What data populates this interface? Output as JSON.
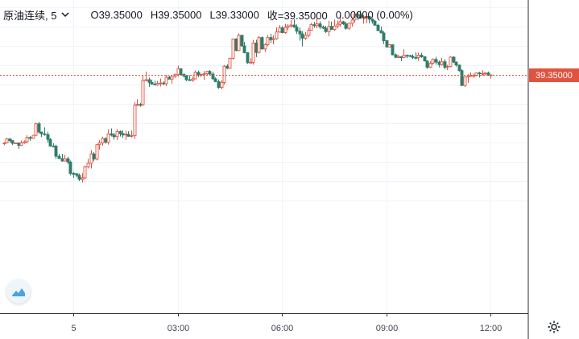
{
  "legend": {
    "symbol": "原油连续, 5",
    "open": "O39.35000",
    "high": "H39.35000",
    "low": "L39.33000",
    "close": "收=39.35000",
    "change": "0.00000 (0.00%)"
  },
  "price_badge": "39.35000",
  "colors": {
    "up": "#e0533f",
    "down": "#2e7d6a",
    "grid": "#f0f3fa",
    "axis_text": "#434651",
    "last_price_line": "#e0533f"
  },
  "icons": [
    "chevron-down-icon",
    "tradingview-logo-icon",
    "gear-icon"
  ],
  "chart_data": {
    "type": "candlestick",
    "symbol": "原油连续",
    "interval": "5",
    "y_range_visible": [
      38.6,
      39.7
    ],
    "last_price": 39.35,
    "x_tick_labels": [
      "5",
      "03:00",
      "06:00",
      "09:00",
      "12:00"
    ],
    "x_tick_index": [
      24,
      60,
      96,
      132,
      168
    ],
    "grid": true,
    "candles": [
      [
        38.998,
        39.002,
        38.986,
        38.998
      ],
      [
        38.998,
        39.024,
        38.996,
        39.019
      ],
      [
        39.019,
        39.021,
        39.0,
        39.01
      ],
      [
        39.01,
        39.012,
        38.987,
        38.996
      ],
      [
        38.996,
        38.998,
        38.994,
        38.998
      ],
      [
        38.998,
        38.998,
        38.967,
        38.985
      ],
      [
        38.985,
        39.011,
        38.985,
        38.998
      ],
      [
        38.998,
        39.011,
        38.993,
        39.004
      ],
      [
        39.004,
        39.038,
        38.998,
        39.026
      ],
      [
        39.026,
        39.034,
        39.009,
        39.022
      ],
      [
        39.022,
        39.039,
        39.02,
        39.037
      ],
      [
        39.037,
        39.102,
        39.034,
        39.097
      ],
      [
        39.097,
        39.107,
        39.047,
        39.054
      ],
      [
        39.054,
        39.057,
        39.028,
        39.045
      ],
      [
        39.045,
        39.078,
        39.035,
        39.041
      ],
      [
        39.041,
        39.055,
        39.0,
        39.016
      ],
      [
        39.016,
        39.024,
        38.978,
        38.982
      ],
      [
        38.982,
        38.996,
        38.979,
        38.981
      ],
      [
        38.981,
        38.989,
        38.915,
        38.929
      ],
      [
        38.929,
        38.942,
        38.916,
        38.917
      ],
      [
        38.917,
        38.941,
        38.901,
        38.904
      ],
      [
        38.904,
        38.936,
        38.901,
        38.916
      ],
      [
        38.916,
        38.926,
        38.888,
        38.899
      ],
      [
        38.899,
        38.906,
        38.83,
        38.84
      ],
      [
        38.84,
        38.848,
        38.817,
        38.838
      ],
      [
        38.838,
        38.841,
        38.82,
        38.83
      ],
      [
        38.83,
        38.839,
        38.8,
        38.81
      ],
      [
        38.81,
        38.841,
        38.794,
        38.817
      ],
      [
        38.817,
        38.88,
        38.813,
        38.875
      ],
      [
        38.875,
        38.916,
        38.866,
        38.893
      ],
      [
        38.893,
        38.961,
        38.865,
        38.941
      ],
      [
        38.941,
        38.95,
        38.903,
        38.915
      ],
      [
        38.915,
        38.992,
        38.907,
        38.989
      ],
      [
        38.989,
        39.012,
        38.964,
        38.998
      ],
      [
        38.998,
        39.03,
        38.984,
        39.021
      ],
      [
        39.021,
        39.026,
        38.993,
        39.002
      ],
      [
        39.002,
        39.068,
        38.989,
        39.045
      ],
      [
        39.045,
        39.073,
        39.031,
        39.039
      ],
      [
        39.039,
        39.05,
        39.015,
        39.03
      ],
      [
        39.03,
        39.07,
        39.013,
        39.057
      ],
      [
        39.057,
        39.063,
        39.031,
        39.046
      ],
      [
        39.046,
        39.063,
        39.024,
        39.039
      ],
      [
        39.039,
        39.061,
        39.014,
        39.043
      ],
      [
        39.043,
        39.059,
        39.03,
        39.032
      ],
      [
        39.032,
        39.062,
        39.026,
        39.036
      ],
      [
        39.036,
        39.208,
        39.019,
        39.194
      ],
      [
        39.194,
        39.224,
        39.189,
        39.197
      ],
      [
        39.197,
        39.204,
        39.185,
        39.196
      ],
      [
        39.196,
        39.346,
        39.189,
        39.321
      ],
      [
        39.321,
        39.367,
        39.316,
        39.325
      ],
      [
        39.325,
        39.336,
        39.288,
        39.311
      ],
      [
        39.311,
        39.325,
        39.3,
        39.302
      ],
      [
        39.302,
        39.32,
        39.297,
        39.298
      ],
      [
        39.298,
        39.319,
        39.294,
        39.306
      ],
      [
        39.306,
        39.331,
        39.29,
        39.308
      ],
      [
        39.308,
        39.317,
        39.296,
        39.304
      ],
      [
        39.304,
        39.349,
        39.292,
        39.338
      ],
      [
        39.338,
        39.346,
        39.327,
        39.328
      ],
      [
        39.328,
        39.348,
        39.305,
        39.341
      ],
      [
        39.341,
        39.356,
        39.335,
        39.353
      ],
      [
        39.353,
        39.398,
        39.342,
        39.382
      ],
      [
        39.382,
        39.383,
        39.351,
        39.352
      ],
      [
        39.352,
        39.358,
        39.337,
        39.344
      ],
      [
        39.344,
        39.349,
        39.317,
        39.325
      ],
      [
        39.325,
        39.348,
        39.319,
        39.322
      ],
      [
        39.322,
        39.342,
        39.314,
        39.329
      ],
      [
        39.329,
        39.373,
        39.328,
        39.363
      ],
      [
        39.363,
        39.372,
        39.338,
        39.351
      ],
      [
        39.351,
        39.357,
        39.339,
        39.352
      ],
      [
        39.352,
        39.37,
        39.324,
        39.356
      ],
      [
        39.356,
        39.37,
        39.347,
        39.368
      ],
      [
        39.368,
        39.375,
        39.348,
        39.354
      ],
      [
        39.354,
        39.365,
        39.325,
        39.33
      ],
      [
        39.33,
        39.337,
        39.312,
        39.315
      ],
      [
        39.315,
        39.326,
        39.277,
        39.285
      ],
      [
        39.285,
        39.323,
        39.275,
        39.311
      ],
      [
        39.311,
        39.401,
        39.3,
        39.395
      ],
      [
        39.395,
        39.405,
        39.38,
        39.384
      ],
      [
        39.384,
        39.437,
        39.383,
        39.436
      ],
      [
        39.436,
        39.538,
        39.429,
        39.536
      ],
      [
        39.536,
        39.539,
        39.472,
        39.476
      ],
      [
        39.476,
        39.564,
        39.473,
        39.555
      ],
      [
        39.555,
        39.556,
        39.496,
        39.5
      ],
      [
        39.5,
        39.521,
        39.462,
        39.465
      ],
      [
        39.465,
        39.467,
        39.407,
        39.413
      ],
      [
        39.413,
        39.436,
        39.411,
        39.415
      ],
      [
        39.415,
        39.531,
        39.403,
        39.515
      ],
      [
        39.515,
        39.532,
        39.442,
        39.466
      ],
      [
        39.466,
        39.55,
        39.46,
        39.543
      ],
      [
        39.543,
        39.549,
        39.481,
        39.484
      ],
      [
        39.484,
        39.514,
        39.469,
        39.507
      ],
      [
        39.507,
        39.556,
        39.499,
        39.543
      ],
      [
        39.543,
        39.562,
        39.515,
        39.532
      ],
      [
        39.532,
        39.555,
        39.508,
        39.537
      ],
      [
        39.537,
        39.596,
        39.532,
        39.572
      ],
      [
        39.572,
        39.608,
        39.568,
        39.593
      ],
      [
        39.593,
        39.603,
        39.565,
        39.569
      ],
      [
        39.569,
        39.614,
        39.563,
        39.596
      ],
      [
        39.596,
        39.613,
        39.582,
        39.603
      ],
      [
        39.603,
        39.633,
        39.594,
        39.608
      ],
      [
        39.608,
        39.637,
        39.594,
        39.597
      ],
      [
        39.597,
        39.611,
        39.562,
        39.576
      ],
      [
        39.576,
        39.595,
        39.527,
        39.562
      ],
      [
        39.562,
        39.576,
        39.497,
        39.54
      ],
      [
        39.54,
        39.572,
        39.532,
        39.555
      ],
      [
        39.555,
        39.594,
        39.544,
        39.581
      ],
      [
        39.581,
        39.619,
        39.579,
        39.61
      ],
      [
        39.61,
        39.624,
        39.594,
        39.605
      ],
      [
        39.605,
        39.643,
        39.591,
        39.614
      ],
      [
        39.614,
        39.627,
        39.588,
        39.598
      ],
      [
        39.598,
        39.606,
        39.587,
        39.592
      ],
      [
        39.592,
        39.604,
        39.567,
        39.574
      ],
      [
        39.574,
        39.63,
        39.55,
        39.601
      ],
      [
        39.601,
        39.626,
        39.584,
        39.585
      ],
      [
        39.585,
        39.636,
        39.578,
        39.603
      ],
      [
        39.603,
        39.63,
        39.59,
        39.612
      ],
      [
        39.612,
        39.658,
        39.6,
        39.625
      ],
      [
        39.625,
        39.63,
        39.609,
        39.614
      ],
      [
        39.614,
        39.624,
        39.584,
        39.591
      ],
      [
        39.591,
        39.62,
        39.583,
        39.617
      ],
      [
        39.617,
        39.642,
        39.6,
        39.634
      ],
      [
        39.634,
        39.678,
        39.621,
        39.663
      ],
      [
        39.663,
        39.676,
        39.634,
        39.661
      ],
      [
        39.661,
        39.683,
        39.64,
        39.644
      ],
      [
        39.644,
        39.661,
        39.615,
        39.651
      ],
      [
        39.651,
        39.661,
        39.617,
        39.652
      ],
      [
        39.652,
        39.652,
        39.616,
        39.638
      ],
      [
        39.638,
        39.643,
        39.615,
        39.628
      ],
      [
        39.628,
        39.634,
        39.605,
        39.607
      ],
      [
        39.607,
        39.614,
        39.576,
        39.579
      ],
      [
        39.579,
        39.6,
        39.566,
        39.567
      ],
      [
        39.567,
        39.576,
        39.51,
        39.527
      ],
      [
        39.527,
        39.53,
        39.492,
        39.494
      ],
      [
        39.494,
        39.508,
        39.493,
        39.506
      ],
      [
        39.506,
        39.506,
        39.451,
        39.454
      ],
      [
        39.454,
        39.461,
        39.437,
        39.441
      ],
      [
        39.441,
        39.454,
        39.438,
        39.444
      ],
      [
        39.444,
        39.448,
        39.421,
        39.439
      ],
      [
        39.439,
        39.483,
        39.437,
        39.451
      ],
      [
        39.451,
        39.456,
        39.437,
        39.45
      ],
      [
        39.45,
        39.454,
        39.442,
        39.446
      ],
      [
        39.446,
        39.457,
        39.432,
        39.44
      ],
      [
        39.44,
        39.467,
        39.43,
        39.439
      ],
      [
        39.439,
        39.465,
        39.423,
        39.452
      ],
      [
        39.452,
        39.464,
        39.438,
        39.444
      ],
      [
        39.444,
        39.444,
        39.42,
        39.422
      ],
      [
        39.422,
        39.425,
        39.381,
        39.389
      ],
      [
        39.389,
        39.42,
        39.385,
        39.41
      ],
      [
        39.41,
        39.436,
        39.403,
        39.43
      ],
      [
        39.43,
        39.444,
        39.403,
        39.416
      ],
      [
        39.416,
        39.424,
        39.389,
        39.403
      ],
      [
        39.403,
        39.438,
        39.398,
        39.418
      ],
      [
        39.418,
        39.431,
        39.379,
        39.389
      ],
      [
        39.389,
        39.402,
        39.375,
        39.393
      ],
      [
        39.393,
        39.446,
        39.389,
        39.442
      ],
      [
        39.442,
        39.446,
        39.411,
        39.416
      ],
      [
        39.416,
        39.42,
        39.392,
        39.401
      ],
      [
        39.401,
        39.402,
        39.367,
        39.372
      ],
      [
        39.372,
        39.379,
        39.292,
        39.295
      ],
      [
        39.295,
        39.343,
        39.287,
        39.339
      ],
      [
        39.339,
        39.354,
        39.309,
        39.345
      ],
      [
        39.345,
        39.363,
        39.341,
        39.347
      ],
      [
        39.347,
        39.356,
        39.335,
        39.347
      ],
      [
        39.347,
        39.362,
        39.342,
        39.36
      ],
      [
        39.36,
        39.366,
        39.336,
        39.357
      ],
      [
        39.357,
        39.374,
        39.346,
        39.357
      ],
      [
        39.357,
        39.362,
        39.348,
        39.36
      ],
      [
        39.36,
        39.367,
        39.345,
        39.35
      ],
      [
        39.35,
        39.35,
        39.33,
        39.35
      ]
    ]
  }
}
